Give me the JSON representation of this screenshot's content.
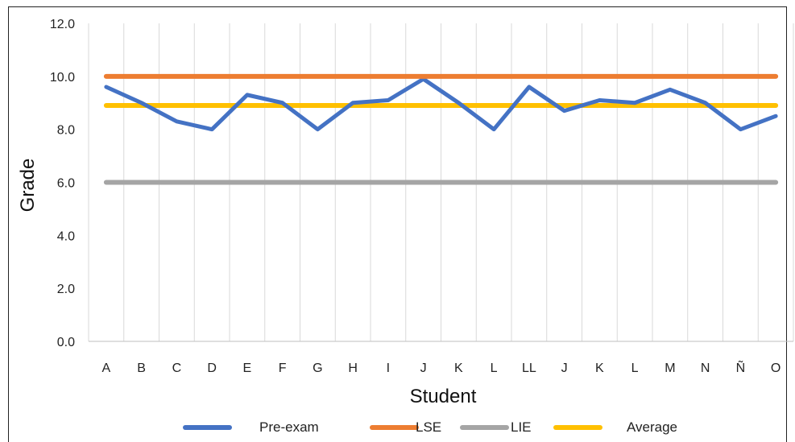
{
  "chart_data": {
    "type": "line",
    "title": "",
    "xlabel": "Student",
    "ylabel": "Grade",
    "ylim": [
      0,
      12
    ],
    "yticks": [
      "0.0",
      "2.0",
      "4.0",
      "6.0",
      "8.0",
      "10.0",
      "12.0"
    ],
    "categories": [
      "A",
      "B",
      "C",
      "D",
      "E",
      "F",
      "G",
      "H",
      "I",
      "J",
      "K",
      "L",
      "LL",
      "J",
      "K",
      "L",
      "M",
      "N",
      "Ñ",
      "O"
    ],
    "grid": "vertical",
    "legend_position": "bottom",
    "series": [
      {
        "name": "Pre-exam",
        "color": "#4472C4",
        "values": [
          9.6,
          9.0,
          8.3,
          8.0,
          9.3,
          9.0,
          8.0,
          9.0,
          9.1,
          9.9,
          9.0,
          8.0,
          9.6,
          8.7,
          9.1,
          9.0,
          9.5,
          9.0,
          8.0,
          8.5
        ]
      },
      {
        "name": "LSE",
        "color": "#ED7D31",
        "values": [
          10,
          10,
          10,
          10,
          10,
          10,
          10,
          10,
          10,
          10,
          10,
          10,
          10,
          10,
          10,
          10,
          10,
          10,
          10,
          10
        ]
      },
      {
        "name": "LIE",
        "color": "#A5A5A5",
        "values": [
          6,
          6,
          6,
          6,
          6,
          6,
          6,
          6,
          6,
          6,
          6,
          6,
          6,
          6,
          6,
          6,
          6,
          6,
          6,
          6
        ]
      },
      {
        "name": "Average",
        "color": "#FFC000",
        "values": [
          8.9,
          8.9,
          8.9,
          8.9,
          8.9,
          8.9,
          8.9,
          8.9,
          8.9,
          8.9,
          8.9,
          8.9,
          8.9,
          8.9,
          8.9,
          8.9,
          8.9,
          8.9,
          8.9,
          8.9
        ]
      }
    ]
  }
}
